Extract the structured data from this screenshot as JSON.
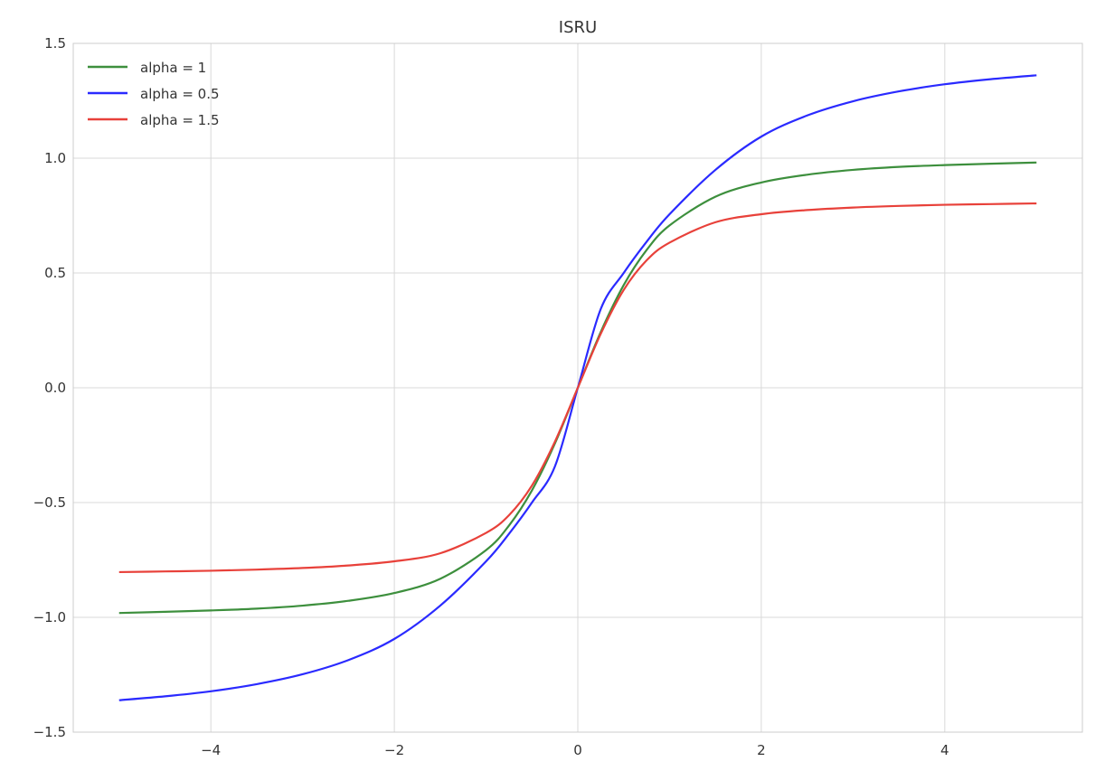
{
  "chart_data": {
    "type": "line",
    "title": "ISRU",
    "xlabel": "",
    "ylabel": "",
    "xlim": [
      -5.5,
      5.5
    ],
    "ylim": [
      -1.5,
      1.5
    ],
    "xticks": [
      -4,
      -2,
      0,
      2,
      4
    ],
    "xtick_labels": [
      "−4",
      "−2",
      "0",
      "2",
      "4"
    ],
    "yticks": [
      -1.5,
      -1.0,
      -0.5,
      0.0,
      0.5,
      1.0,
      1.5
    ],
    "ytick_labels": [
      "−1.5",
      "−1.0",
      "−0.5",
      "0.0",
      "0.5",
      "1.0",
      "1.5"
    ],
    "grid": true,
    "legend_position": "top-left",
    "x": [
      -5,
      -4.5,
      -4,
      -3.5,
      -3,
      -2.5,
      -2,
      -1.5,
      -1,
      -0.75,
      -0.5,
      -0.25,
      0,
      0.25,
      0.5,
      0.75,
      1,
      1.5,
      2,
      2.5,
      3,
      3.5,
      4,
      4.5,
      5
    ],
    "series": [
      {
        "name": "alpha = 1",
        "color": "#3d8f3d",
        "values": [
          -0.981,
          -0.976,
          -0.97,
          -0.962,
          -0.949,
          -0.928,
          -0.894,
          -0.832,
          -0.707,
          -0.6,
          -0.447,
          -0.243,
          0.0,
          0.243,
          0.447,
          0.6,
          0.707,
          0.832,
          0.894,
          0.928,
          0.949,
          0.962,
          0.97,
          0.976,
          0.981
        ]
      },
      {
        "name": "alpha = 0.5",
        "color": "#2a2aff",
        "values": [
          -1.361,
          -1.344,
          -1.322,
          -1.291,
          -1.248,
          -1.186,
          -1.094,
          -0.949,
          -0.756,
          -0.636,
          -0.5,
          -0.343,
          0.0,
          0.343,
          0.5,
          0.636,
          0.756,
          0.949,
          1.094,
          1.186,
          1.248,
          1.291,
          1.322,
          1.344,
          1.361
        ]
      },
      {
        "name": "alpha = 1.5",
        "color": "#e8413a",
        "values": [
          -0.803,
          -0.8,
          -0.797,
          -0.792,
          -0.785,
          -0.774,
          -0.756,
          -0.721,
          -0.632,
          -0.555,
          -0.426,
          -0.235,
          0.0,
          0.235,
          0.426,
          0.555,
          0.632,
          0.721,
          0.756,
          0.774,
          0.785,
          0.792,
          0.797,
          0.8,
          0.803
        ]
      }
    ]
  }
}
